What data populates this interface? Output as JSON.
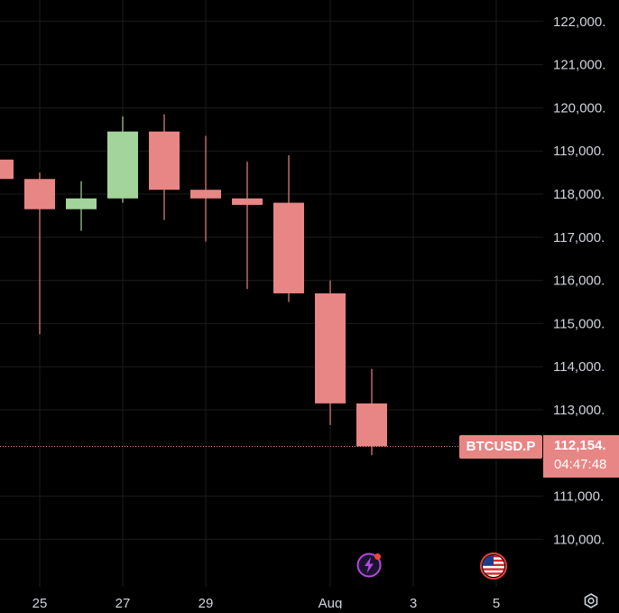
{
  "chart_data": {
    "type": "candlestick",
    "symbol": "BTCUSD.P",
    "last_price": "112,154.",
    "countdown": "04:47:48",
    "last_price_value": 112154,
    "ylim": [
      109300,
      122500
    ],
    "y_ticks": [
      {
        "value": 122000,
        "label": "122,000."
      },
      {
        "value": 121000,
        "label": "121,000."
      },
      {
        "value": 120000,
        "label": "120,000."
      },
      {
        "value": 119000,
        "label": "119,000."
      },
      {
        "value": 118000,
        "label": "118,000."
      },
      {
        "value": 117000,
        "label": "117,000."
      },
      {
        "value": 116000,
        "label": "116,000."
      },
      {
        "value": 115000,
        "label": "115,000."
      },
      {
        "value": 114000,
        "label": "114,000."
      },
      {
        "value": 113000,
        "label": "113,000."
      },
      {
        "value": 111000,
        "label": "111,000."
      },
      {
        "value": 110000,
        "label": "110,000."
      }
    ],
    "x_ticks": [
      {
        "day": 25,
        "label": "25"
      },
      {
        "day": 27,
        "label": "27"
      },
      {
        "day": 29,
        "label": "29"
      },
      {
        "day": 32,
        "label": "Aug"
      },
      {
        "day": 34,
        "label": "3"
      },
      {
        "day": 36,
        "label": "5"
      }
    ],
    "candles": [
      {
        "day": 24,
        "open": 118800,
        "high": 118900,
        "low": 118350,
        "close": 118350
      },
      {
        "day": 25,
        "open": 118350,
        "high": 118500,
        "low": 114750,
        "close": 117650
      },
      {
        "day": 26,
        "open": 117650,
        "high": 118300,
        "low": 117150,
        "close": 117900
      },
      {
        "day": 27,
        "open": 117900,
        "high": 119800,
        "low": 117800,
        "close": 119450
      },
      {
        "day": 28,
        "open": 119450,
        "high": 119850,
        "low": 117400,
        "close": 118100
      },
      {
        "day": 29,
        "open": 118100,
        "high": 119350,
        "low": 116900,
        "close": 117900
      },
      {
        "day": 30,
        "open": 117900,
        "high": 118750,
        "low": 115800,
        "close": 117750
      },
      {
        "day": 31,
        "open": 117800,
        "high": 118900,
        "low": 115500,
        "close": 115700
      },
      {
        "day": 32,
        "open": 115700,
        "high": 116000,
        "low": 112650,
        "close": 113150
      },
      {
        "day": 33,
        "open": 113150,
        "high": 113950,
        "low": 111950,
        "close": 112154
      }
    ],
    "colors": {
      "up": "#a3d49b",
      "down": "#e88585",
      "grid": "#1c1c1c",
      "price_line": "#e88585"
    },
    "grid": true
  }
}
